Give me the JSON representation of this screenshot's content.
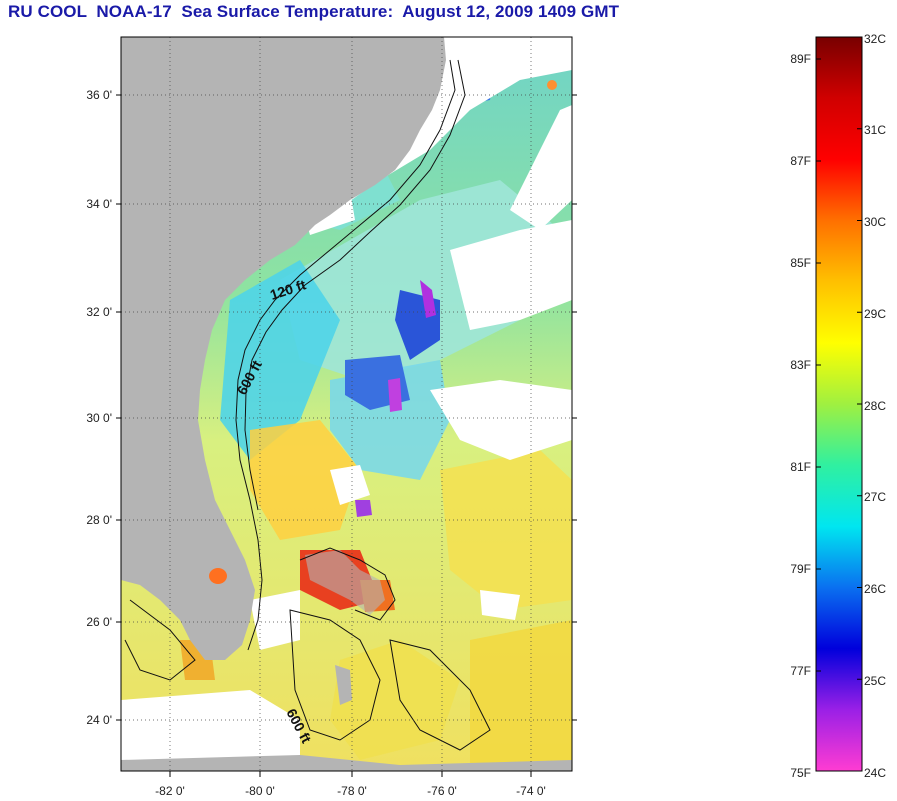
{
  "title": "RU COOL  NOAA-17  Sea Surface Temperature:  August 12, 2009 1409 GMT",
  "map": {
    "lat_labels": [
      "36 0'",
      "34 0'",
      "32 0'",
      "30 0'",
      "28 0'",
      "26 0'",
      "24 0'"
    ],
    "lon_labels": [
      "-82 0'",
      "-80 0'",
      "-78 0'",
      "-76 0'",
      "-74 0'"
    ],
    "contour_labels": [
      "120 ft",
      "600 ft",
      "600 ft"
    ],
    "colors": {
      "land": "#b4b4b4",
      "cloud": "#ffffff",
      "ocean_cool": "#3ccdf0",
      "ocean_warm": "#b8f050"
    }
  },
  "colorbar": {
    "fahrenheit_labels": [
      "89F",
      "87F",
      "85F",
      "83F",
      "81F",
      "79F",
      "77F",
      "75F"
    ],
    "celsius_labels": [
      "32C",
      "31C",
      "30C",
      "29C",
      "28C",
      "27C",
      "26C",
      "25C",
      "24C"
    ],
    "celsius_range": [
      24,
      32
    ],
    "colors": [
      "#ff3cd2",
      "#9b20e6",
      "#0000dc",
      "#0a70f0",
      "#00e6f0",
      "#30f0a0",
      "#a0f040",
      "#ffff00",
      "#ffc000",
      "#ff7000",
      "#ff0000",
      "#d00000",
      "#780000"
    ]
  }
}
